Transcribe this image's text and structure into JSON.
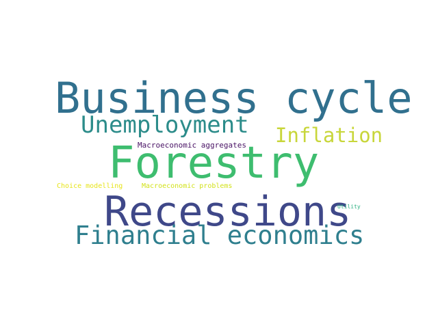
{
  "words": [
    {
      "key": "business_cycle",
      "text": "Business cycle",
      "color": "#31708e"
    },
    {
      "key": "unemployment",
      "text": "Unemployment",
      "color": "#2c8c8a"
    },
    {
      "key": "inflation",
      "text": "Inflation",
      "color": "#c8d63a"
    },
    {
      "key": "macroeconomic_aggregates",
      "text": "Macroeconomic aggregates",
      "color": "#471063"
    },
    {
      "key": "forestry",
      "text": "Forestry",
      "color": "#3ebd6f"
    },
    {
      "key": "choice_modelling",
      "text": "Choice modelling",
      "color": "#e7e419"
    },
    {
      "key": "macroeconomic_problems",
      "text": "Macroeconomic problems",
      "color": "#d2e21b"
    },
    {
      "key": "recessions",
      "text": "Recessions",
      "color": "#3f4889"
    },
    {
      "key": "utility",
      "text": "Utility",
      "color": "#2aaf7f"
    },
    {
      "key": "financial_economics",
      "text": "Financial economics",
      "color": "#2f7f8e"
    }
  ]
}
